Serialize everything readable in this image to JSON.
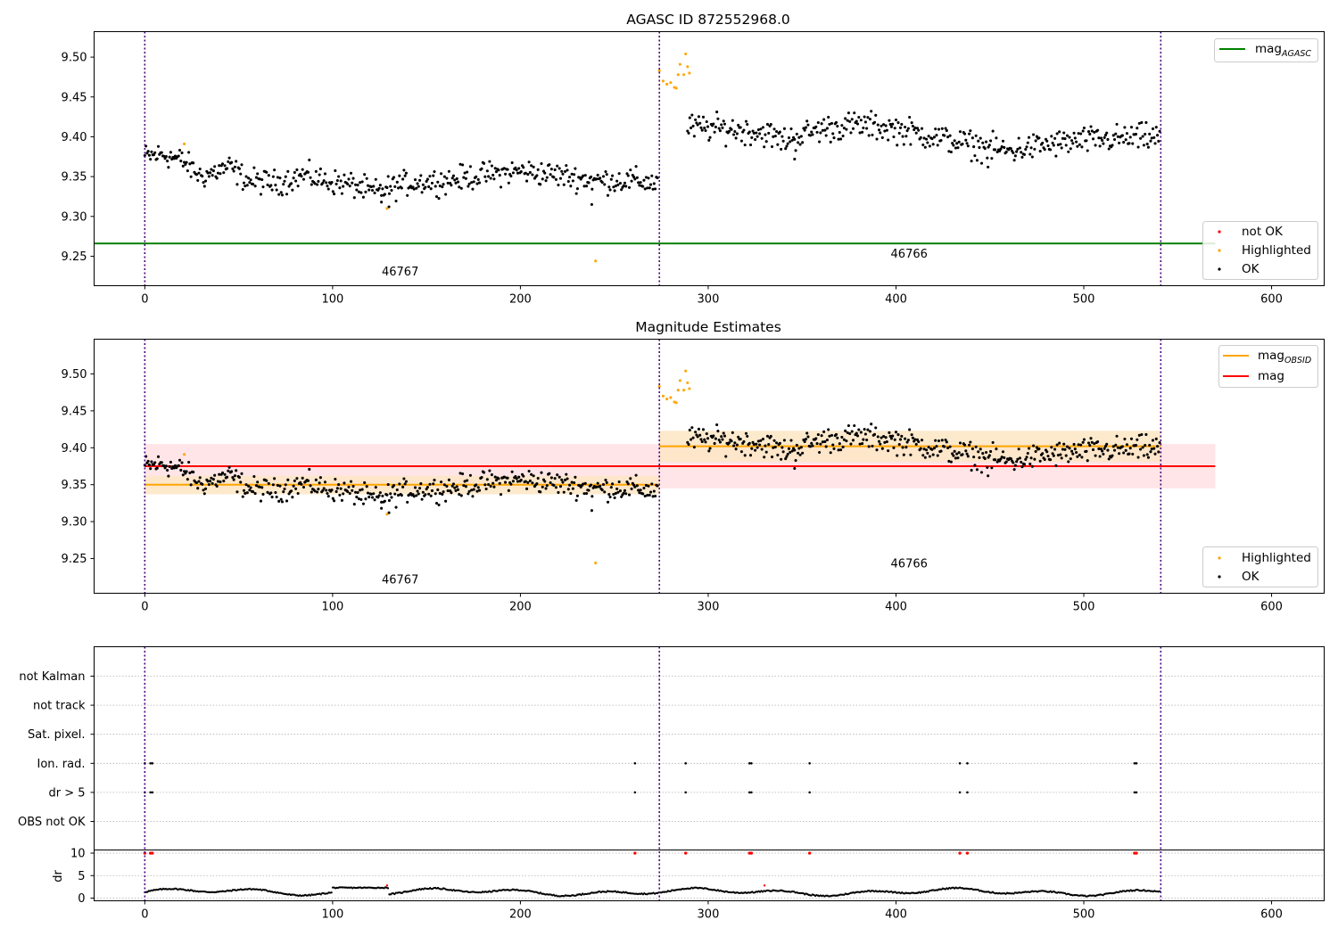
{
  "chart_data": [
    {
      "type": "scatter",
      "title": "AGASC ID 872552968.0",
      "xlim": [
        -27,
        628
      ],
      "ylim": [
        9.213,
        9.532
      ],
      "xticks": [
        0,
        100,
        200,
        300,
        400,
        500,
        600
      ],
      "yticks": [
        9.25,
        9.3,
        9.35,
        9.4,
        9.45,
        9.5
      ],
      "xticklabels": [
        "0",
        "100",
        "200",
        "300",
        "400",
        "500",
        "600"
      ],
      "yticklabels": [
        "9.25",
        "9.30",
        "9.35",
        "9.40",
        "9.45",
        "9.50"
      ],
      "vlines": [
        0,
        274,
        541
      ],
      "hlines": [
        {
          "name": "mag_AGASC",
          "y": 9.266,
          "x": [
            -27,
            570
          ],
          "color": "#008000"
        }
      ],
      "annotations": [
        {
          "text": "46767",
          "x": 136,
          "y": 9.226
        },
        {
          "text": "46766",
          "x": 407,
          "y": 9.248
        }
      ],
      "legends": [
        {
          "loc": "upper right",
          "entries": [
            {
              "marker": "line",
              "color": "#008000",
              "label": "mag",
              "sub": "AGASC"
            }
          ]
        },
        {
          "loc": "lower right",
          "entries": [
            {
              "marker": "dot",
              "color": "#ff0000",
              "label": "not OK"
            },
            {
              "marker": "dot",
              "color": "#ffa500",
              "label": "Highlighted"
            },
            {
              "marker": "dot",
              "color": "#000000",
              "label": "OK"
            }
          ]
        }
      ],
      "series": [
        {
          "name": "OK",
          "color": "#000000",
          "segments": [
            {
              "x": [
                0,
                273
              ],
              "anchors": [
                [
                  0,
                  9.375
                ],
                [
                  10,
                  9.378
                ],
                [
                  20,
                  9.37
                ],
                [
                  30,
                  9.35
                ],
                [
                  45,
                  9.362
                ],
                [
                  55,
                  9.345
                ],
                [
                  70,
                  9.342
                ],
                [
                  85,
                  9.352
                ],
                [
                  95,
                  9.345
                ],
                [
                  110,
                  9.34
                ],
                [
                  122,
                  9.33
                ],
                [
                  140,
                  9.342
                ],
                [
                  160,
                  9.345
                ],
                [
                  180,
                  9.352
                ],
                [
                  200,
                  9.357
                ],
                [
                  220,
                  9.352
                ],
                [
                  240,
                  9.345
                ],
                [
                  260,
                  9.345
                ],
                [
                  273,
                  9.342
                ]
              ],
              "spread": 0.011,
              "step": 0.6
            },
            {
              "x": [
                289,
                541
              ],
              "anchors": [
                [
                  289,
                  9.412
                ],
                [
                  310,
                  9.41
                ],
                [
                  330,
                  9.405
                ],
                [
                  340,
                  9.395
                ],
                [
                  360,
                  9.41
                ],
                [
                  380,
                  9.415
                ],
                [
                  400,
                  9.41
                ],
                [
                  420,
                  9.4
                ],
                [
                  440,
                  9.39
                ],
                [
                  460,
                  9.382
                ],
                [
                  480,
                  9.39
                ],
                [
                  500,
                  9.395
                ],
                [
                  520,
                  9.398
                ],
                [
                  541,
                  9.4
                ]
              ],
              "spread": 0.012,
              "step": 0.6
            }
          ],
          "outliers": [
            [
              130,
              9.312
            ],
            [
              126,
              9.318
            ],
            [
              238,
              9.315
            ],
            [
              346,
              9.372
            ],
            [
              449,
              9.362
            ]
          ]
        },
        {
          "name": "Highlighted",
          "color": "#ffa500",
          "points": [
            [
              21,
              9.391
            ],
            [
              129,
              9.31
            ],
            [
              240,
              9.244
            ],
            [
              274,
              9.483
            ],
            [
              276,
              9.47
            ],
            [
              278,
              9.466
            ],
            [
              280,
              9.468
            ],
            [
              282,
              9.462
            ],
            [
              283,
              9.461
            ],
            [
              284,
              9.478
            ],
            [
              285,
              9.491
            ],
            [
              287,
              9.478
            ],
            [
              288,
              9.504
            ],
            [
              289,
              9.488
            ],
            [
              290,
              9.48
            ]
          ]
        }
      ]
    },
    {
      "type": "scatter",
      "title": "Magnitude Estimates",
      "xlim": [
        -27,
        628
      ],
      "ylim": [
        9.203,
        9.547
      ],
      "xticks": [
        0,
        100,
        200,
        300,
        400,
        500,
        600
      ],
      "yticks": [
        9.25,
        9.3,
        9.35,
        9.4,
        9.45,
        9.5
      ],
      "xticklabels": [
        "0",
        "100",
        "200",
        "300",
        "400",
        "500",
        "600"
      ],
      "yticklabels": [
        "9.25",
        "9.30",
        "9.35",
        "9.40",
        "9.45",
        "9.50"
      ],
      "vlines": [
        0,
        274,
        541
      ],
      "bands": [
        {
          "name": "mag",
          "x": [
            0,
            570
          ],
          "y": [
            9.345,
            9.405
          ],
          "color": "#ffe0e3"
        },
        {
          "name": "mag_OBSID 46767",
          "x": [
            0,
            274
          ],
          "y": [
            9.337,
            9.362
          ],
          "color": "#fde6c4"
        },
        {
          "name": "mag_OBSID 46766",
          "x": [
            274,
            541
          ],
          "y": [
            9.381,
            9.423
          ],
          "color": "#fde6c4"
        }
      ],
      "hlines": [
        {
          "name": "mag",
          "y": 9.375,
          "x": [
            0,
            570
          ],
          "color": "#ff0000"
        },
        {
          "name": "mag_OBSID",
          "y": 9.35,
          "x": [
            0,
            274
          ],
          "color": "#ffa500"
        },
        {
          "name": "mag_OBSID",
          "y": 9.402,
          "x": [
            274,
            541
          ],
          "color": "#ffa500"
        }
      ],
      "annotations": [
        {
          "text": "46767",
          "x": 136,
          "y": 9.216
        },
        {
          "text": "46766",
          "x": 407,
          "y": 9.238
        }
      ],
      "legends": [
        {
          "loc": "upper right",
          "entries": [
            {
              "marker": "line",
              "color": "#ffa500",
              "label": "mag",
              "sub": "OBSID"
            },
            {
              "marker": "line",
              "color": "#ff0000",
              "label": "mag",
              "sub": ""
            }
          ]
        },
        {
          "loc": "lower right",
          "entries": [
            {
              "marker": "dot",
              "color": "#ffa500",
              "label": "Highlighted"
            },
            {
              "marker": "dot",
              "color": "#000000",
              "label": "OK"
            }
          ]
        }
      ],
      "series_ref": "same points as panel 1"
    },
    {
      "type": "scatter",
      "title": "",
      "xlim": [
        -27,
        628
      ],
      "xticks": [
        0,
        100,
        200,
        300,
        400,
        500,
        600
      ],
      "xticklabels": [
        "0",
        "100",
        "200",
        "300",
        "400",
        "500",
        "600"
      ],
      "categories": [
        "not Kalman",
        "not track",
        "Sat. pixel.",
        "Ion. rad.",
        "dr > 5",
        "OBS not OK"
      ],
      "flag_events": [
        0,
        3,
        4,
        261,
        288,
        322,
        323,
        354,
        434,
        438,
        527,
        528
      ],
      "flag_rows": [
        "Ion. rad.",
        "dr > 5"
      ],
      "vlines": [
        0,
        274,
        541
      ],
      "sub_panel": {
        "ylabel": "dr",
        "ylim": [
          -0.6,
          10.7
        ],
        "yticks": [
          0,
          5,
          10
        ],
        "yticklabels": [
          "0",
          "5",
          "10"
        ],
        "clipped_value": 10,
        "ok_color": "#000000",
        "not_ok_color": "#ff0000"
      }
    }
  ]
}
